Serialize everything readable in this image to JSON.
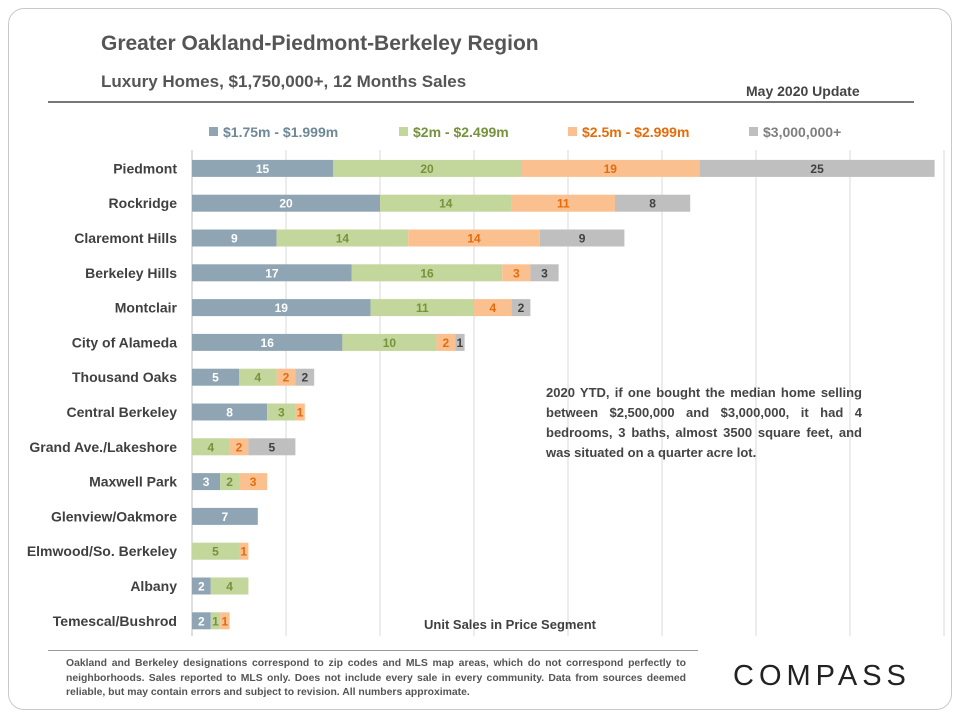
{
  "header": {
    "title": "Greater Oakland-Piedmont-Berkeley Region",
    "subtitle": "Luxury Homes, $1,750,000+, 12 Months Sales",
    "update": "May 2020 Update"
  },
  "note": "2020 YTD, if one bought the median home selling between $2,500,000 and $3,000,000, it had 4 bedrooms, 3 baths, almost 3500 square feet, and was situated on a quarter acre lot.",
  "footer": "Oakland and Berkeley designations correspond to zip codes and MLS map areas, which do not correspond perfectly to neighborhoods. Sales reported to MLS only. Does not include every sale in every community. Data from sources deemed reliable, but may contain errors and subject to revision. All numbers approximate.",
  "brand": "COMPASS",
  "colors": {
    "s1": "#8fa5b4",
    "s2": "#c3d69b",
    "s3": "#fac090",
    "s4": "#bfbfbf",
    "s1_text": "#6f8897",
    "s2_text": "#76923c",
    "s3_text": "#e46c0a",
    "s4_text": "#7f7f7f"
  },
  "chart_data": {
    "type": "bar",
    "orientation": "horizontal",
    "stacked": true,
    "categories": [
      "Piedmont",
      "Rockridge",
      "Claremont Hills",
      "Berkeley Hills",
      "Montclair",
      "City of Alameda",
      "Thousand Oaks",
      "Central Berkeley",
      "Grand Ave./Lakeshore",
      "Maxwell Park",
      "Glenview/Oakmore",
      "Elmwood/So. Berkeley",
      "Albany",
      "Temescal/Bushrod"
    ],
    "series": [
      {
        "name": "$1.75m - $1.999m",
        "values": [
          15,
          20,
          9,
          17,
          19,
          16,
          5,
          8,
          0,
          3,
          7,
          0,
          2,
          2
        ]
      },
      {
        "name": "$2m - $2.499m",
        "values": [
          20,
          14,
          14,
          16,
          11,
          10,
          4,
          3,
          4,
          2,
          0,
          5,
          4,
          1
        ]
      },
      {
        "name": "$2.5m - $2.999m",
        "values": [
          19,
          11,
          14,
          3,
          4,
          2,
          2,
          1,
          2,
          3,
          0,
          1,
          0,
          1
        ]
      },
      {
        "name": "$3,000,000+",
        "values": [
          25,
          8,
          9,
          3,
          2,
          1,
          2,
          0,
          5,
          0,
          0,
          0,
          0,
          0
        ]
      }
    ],
    "xlabel": "Unit Sales in Price Segment",
    "xlim": [
      0,
      80
    ],
    "grid": true,
    "legend": "top"
  }
}
